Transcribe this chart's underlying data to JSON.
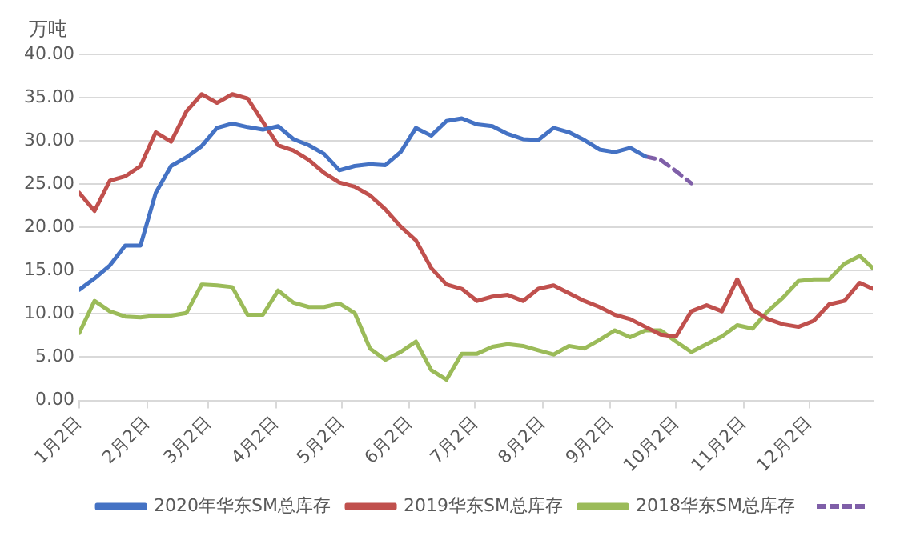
{
  "chart_data": {
    "type": "line",
    "ylabel": "万吨",
    "x": [
      "--01-02",
      "--01-09",
      "--01-16",
      "--01-23",
      "--01-30",
      "--02-06",
      "--02-13",
      "--02-20",
      "--02-27",
      "--03-06",
      "--03-13",
      "--03-20",
      "--03-27",
      "--04-03",
      "--04-10",
      "--04-17",
      "--04-24",
      "--05-01",
      "--05-08",
      "--05-15",
      "--05-22",
      "--05-29",
      "--06-05",
      "--06-12",
      "--06-19",
      "--06-26",
      "--07-03",
      "--07-10",
      "--07-17",
      "--07-24",
      "--07-31",
      "--08-07",
      "--08-14",
      "--08-21",
      "--08-28",
      "--09-04",
      "--09-11",
      "--09-18",
      "--09-25",
      "--10-02",
      "--10-09",
      "--10-16",
      "--10-23",
      "--10-30",
      "--11-06",
      "--11-13",
      "--11-20",
      "--11-27",
      "--12-04",
      "--12-11",
      "--12-18",
      "--12-25",
      "--12-31"
    ],
    "series": [
      {
        "name": "2020年华东SM总库存",
        "color": "#4472c4",
        "values": [
          12.8,
          14.1,
          15.6,
          17.9,
          17.9,
          24.0,
          27.1,
          28.1,
          29.4,
          31.5,
          32.0,
          31.6,
          31.3,
          31.7,
          30.2,
          29.5,
          28.5,
          26.6,
          27.1,
          27.3,
          27.2,
          28.7,
          31.5,
          30.6,
          32.3,
          32.6,
          31.9,
          31.7,
          30.8,
          30.2,
          30.1,
          31.5,
          31.0,
          30.1,
          29.0,
          28.7,
          29.2,
          28.2,
          null,
          null,
          null,
          null,
          null,
          null,
          null,
          null,
          null,
          null,
          null,
          null,
          null,
          null,
          null
        ]
      },
      {
        "name": "2019华东SM总库存",
        "color": "#c0504d",
        "values": [
          24.0,
          21.9,
          25.4,
          25.9,
          27.1,
          31.0,
          29.9,
          33.4,
          35.4,
          34.4,
          35.4,
          34.9,
          32.2,
          29.5,
          28.9,
          27.8,
          26.3,
          25.2,
          24.7,
          23.7,
          22.1,
          20.1,
          18.5,
          15.3,
          13.4,
          12.9,
          11.5,
          12.0,
          12.2,
          11.5,
          12.9,
          13.3,
          12.4,
          11.5,
          10.8,
          9.9,
          9.4,
          8.5,
          7.6,
          7.4,
          10.3,
          11.0,
          10.3,
          14.0,
          10.5,
          9.4,
          8.8,
          8.5,
          9.2,
          11.1,
          11.5,
          13.6,
          12.9
        ]
      },
      {
        "name": "2018华东SM总库存",
        "color": "#9bbb59",
        "values": [
          7.8,
          11.5,
          10.3,
          9.7,
          9.6,
          9.8,
          9.8,
          10.1,
          13.4,
          13.3,
          13.1,
          9.9,
          9.9,
          12.7,
          11.3,
          10.8,
          10.8,
          11.2,
          10.1,
          6.0,
          4.7,
          5.6,
          6.8,
          3.5,
          2.4,
          5.4,
          5.4,
          6.2,
          6.5,
          6.3,
          5.8,
          5.3,
          6.3,
          6.0,
          7.0,
          8.1,
          7.3,
          8.1,
          8.1,
          6.8,
          5.6,
          6.5,
          7.4,
          8.7,
          8.3,
          10.3,
          11.9,
          13.8,
          14.0,
          14.0,
          15.8,
          16.7,
          15.3
        ]
      },
      {
        "color": "#7f5fa8",
        "line_style": "dashed",
        "values": [
          null,
          null,
          null,
          null,
          null,
          null,
          null,
          null,
          null,
          null,
          null,
          null,
          null,
          null,
          null,
          null,
          null,
          null,
          null,
          null,
          null,
          null,
          null,
          null,
          null,
          null,
          null,
          null,
          null,
          null,
          null,
          null,
          null,
          null,
          null,
          null,
          null,
          28.2,
          27.8,
          26.5,
          25.1,
          null,
          null,
          null,
          null,
          null,
          null,
          null,
          null,
          null,
          null,
          null,
          null
        ]
      }
    ],
    "xlim": [
      "--01-02",
      "--12-31"
    ],
    "xticks": [
      {
        "value": "--01-02",
        "label": "1月2日"
      },
      {
        "value": "--02-02",
        "label": "2月2日"
      },
      {
        "value": "--03-02",
        "label": "3月2日"
      },
      {
        "value": "--04-02",
        "label": "4月2日"
      },
      {
        "value": "--05-02",
        "label": "5月2日"
      },
      {
        "value": "--06-02",
        "label": "6月2日"
      },
      {
        "value": "--07-02",
        "label": "7月2日"
      },
      {
        "value": "--08-02",
        "label": "8月2日"
      },
      {
        "value": "--09-02",
        "label": "9月2日"
      },
      {
        "value": "--10-02",
        "label": "10月2日"
      },
      {
        "value": "--11-02",
        "label": "11月2日"
      },
      {
        "value": "--12-02",
        "label": "12月2日"
      }
    ],
    "ylim": [
      0,
      40
    ],
    "yticks": [
      {
        "value": 0,
        "label": "0.00"
      },
      {
        "value": 5,
        "label": "5.00"
      },
      {
        "value": 10,
        "label": "10.00"
      },
      {
        "value": 15,
        "label": "15.00"
      },
      {
        "value": 20,
        "label": "20.00"
      },
      {
        "value": 25,
        "label": "25.00"
      },
      {
        "value": 30,
        "label": "30.00"
      },
      {
        "value": 35,
        "label": "35.00"
      },
      {
        "value": 40,
        "label": "40.00"
      }
    ],
    "grid": "y",
    "legend": "bottom",
    "line_style": "solid",
    "marker": "none"
  }
}
